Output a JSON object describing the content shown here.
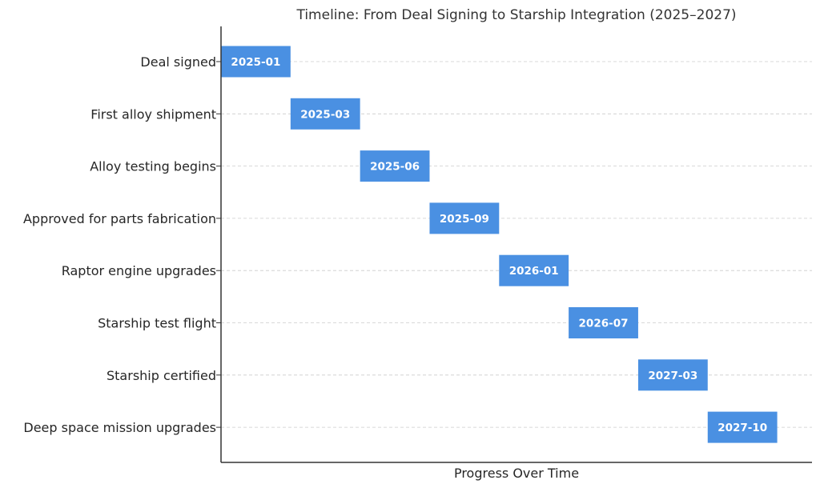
{
  "chart_data": {
    "type": "bar",
    "orientation": "horizontal",
    "title": "Timeline: From Deal Signing to Starship Integration (2025–2027)",
    "xlabel": "Progress Over Time",
    "ylabel": "",
    "categories": [
      "Deal signed",
      "First alloy shipment",
      "Alloy testing begins",
      "Approved for parts fabrication",
      "Raptor engine upgrades",
      "Starship test flight",
      "Starship certified",
      "Deep space mission upgrades"
    ],
    "series": [
      {
        "start": [
          0,
          1,
          2,
          3,
          4,
          5,
          6,
          7
        ],
        "duration": [
          1,
          1,
          1,
          1,
          1,
          1,
          1,
          1
        ],
        "labels": [
          "2025-01",
          "2025-03",
          "2025-06",
          "2025-09",
          "2026-01",
          "2026-07",
          "2027-03",
          "2027-10"
        ]
      }
    ],
    "xlim": [
      0,
      8.5
    ],
    "color": "#4a90e2",
    "grid": "horizontal dashed",
    "legend": "none",
    "x_ticks_shown": false
  }
}
